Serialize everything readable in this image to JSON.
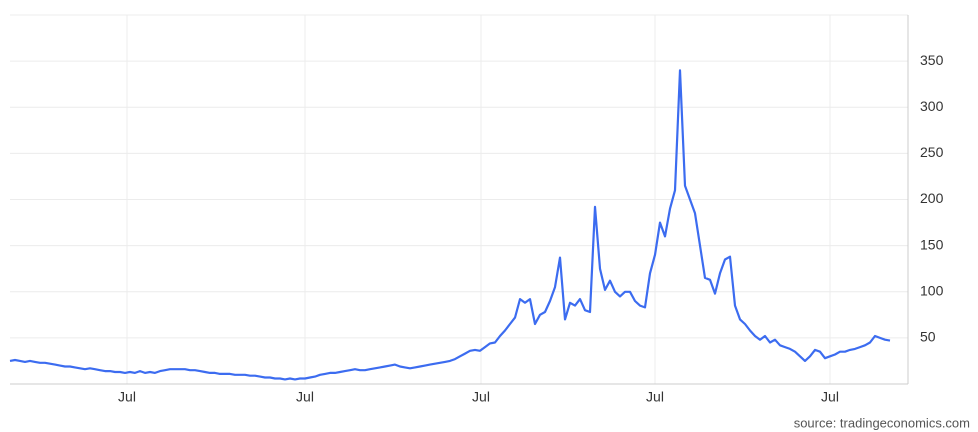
{
  "chart_data": {
    "type": "line",
    "color": "#3c6cf0",
    "grid": true,
    "values": [
      25,
      26,
      25,
      24,
      25,
      24,
      23,
      23,
      22,
      21,
      20,
      19,
      19,
      18,
      17,
      16,
      17,
      16,
      15,
      14,
      14,
      13,
      13,
      12,
      13,
      12,
      14,
      12,
      13,
      12,
      14,
      15,
      16,
      16,
      16,
      16,
      15,
      15,
      14,
      13,
      12,
      12,
      11,
      11,
      11,
      10,
      10,
      10,
      9,
      9,
      8,
      7,
      7,
      6,
      6,
      5,
      6,
      5,
      6,
      6,
      7,
      8,
      10,
      11,
      12,
      12,
      13,
      14,
      15,
      16,
      15,
      15,
      16,
      17,
      18,
      19,
      20,
      21,
      19,
      18,
      17,
      18,
      19,
      20,
      21,
      22,
      23,
      24,
      25,
      27,
      30,
      33,
      36,
      37,
      36,
      40,
      44,
      45,
      52,
      58,
      65,
      72,
      92,
      88,
      92,
      65,
      75,
      78,
      90,
      105,
      137,
      70,
      88,
      85,
      92,
      80,
      78,
      192,
      125,
      102,
      112,
      100,
      95,
      100,
      100,
      90,
      85,
      83,
      120,
      140,
      175,
      160,
      190,
      210,
      340,
      215,
      200,
      185,
      150,
      115,
      113,
      98,
      120,
      135,
      138,
      85,
      70,
      65,
      58,
      52,
      48,
      52,
      45,
      48,
      42,
      40,
      38,
      35,
      30,
      25,
      30,
      37,
      35,
      28,
      30,
      32,
      35,
      35,
      37,
      38,
      40,
      42,
      45,
      52,
      50,
      48,
      47
    ],
    "xlim": [
      0,
      179.6
    ],
    "xticks": [
      {
        "value": 23.4,
        "label": "Jul"
      },
      {
        "value": 59,
        "label": "Jul"
      },
      {
        "value": 94.2,
        "label": "Jul"
      },
      {
        "value": 129,
        "label": "Jul"
      },
      {
        "value": 164,
        "label": "Jul"
      }
    ],
    "ylim": [
      0,
      400
    ],
    "yticks": [
      50,
      100,
      150,
      200,
      250,
      300,
      350
    ],
    "source": "source: tradingeconomics.com"
  }
}
